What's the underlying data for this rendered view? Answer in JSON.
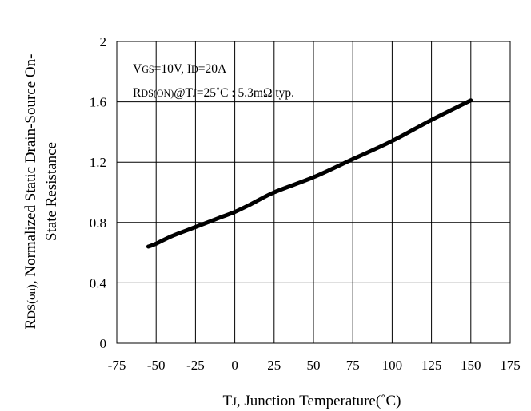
{
  "chart_data": {
    "type": "line",
    "xlabel": {
      "main": "T",
      "sub": "J",
      "rest": ", Junction Temperature(˚C)"
    },
    "ylabel": {
      "main": "R",
      "sub": "DS(on)",
      "rest": ", Normalized Static Drain-Source On-",
      "line2": "State Resistance"
    },
    "xlim": [
      -75,
      175
    ],
    "ylim": [
      0,
      2
    ],
    "xticks": [
      -75,
      -50,
      -25,
      0,
      25,
      50,
      75,
      100,
      125,
      150,
      175
    ],
    "yticks": [
      0,
      0.4,
      0.8,
      1.2,
      1.6,
      2
    ],
    "ytick_labels": [
      "0",
      "0.4",
      "0.8",
      "1.2",
      "1.6",
      "2"
    ],
    "grid": true,
    "annotations": {
      "line1": {
        "p1": "V",
        "s1": "GS",
        "p2": "=10V, I",
        "s2": "D",
        "p3": "=20A"
      },
      "line2": {
        "p1": "R",
        "s1": "DS(ON)",
        "p2": "@T",
        "s2": "J",
        "p3": "=25˚C : 5.3mΩ  typ."
      }
    },
    "series": [
      {
        "color": "#000000",
        "x": [
          -55,
          -50,
          -40,
          -25,
          -10,
          0,
          10,
          25,
          50,
          75,
          100,
          125,
          150
        ],
        "y": [
          0.64,
          0.66,
          0.71,
          0.77,
          0.83,
          0.87,
          0.92,
          1.0,
          1.1,
          1.22,
          1.34,
          1.48,
          1.61
        ]
      }
    ]
  }
}
